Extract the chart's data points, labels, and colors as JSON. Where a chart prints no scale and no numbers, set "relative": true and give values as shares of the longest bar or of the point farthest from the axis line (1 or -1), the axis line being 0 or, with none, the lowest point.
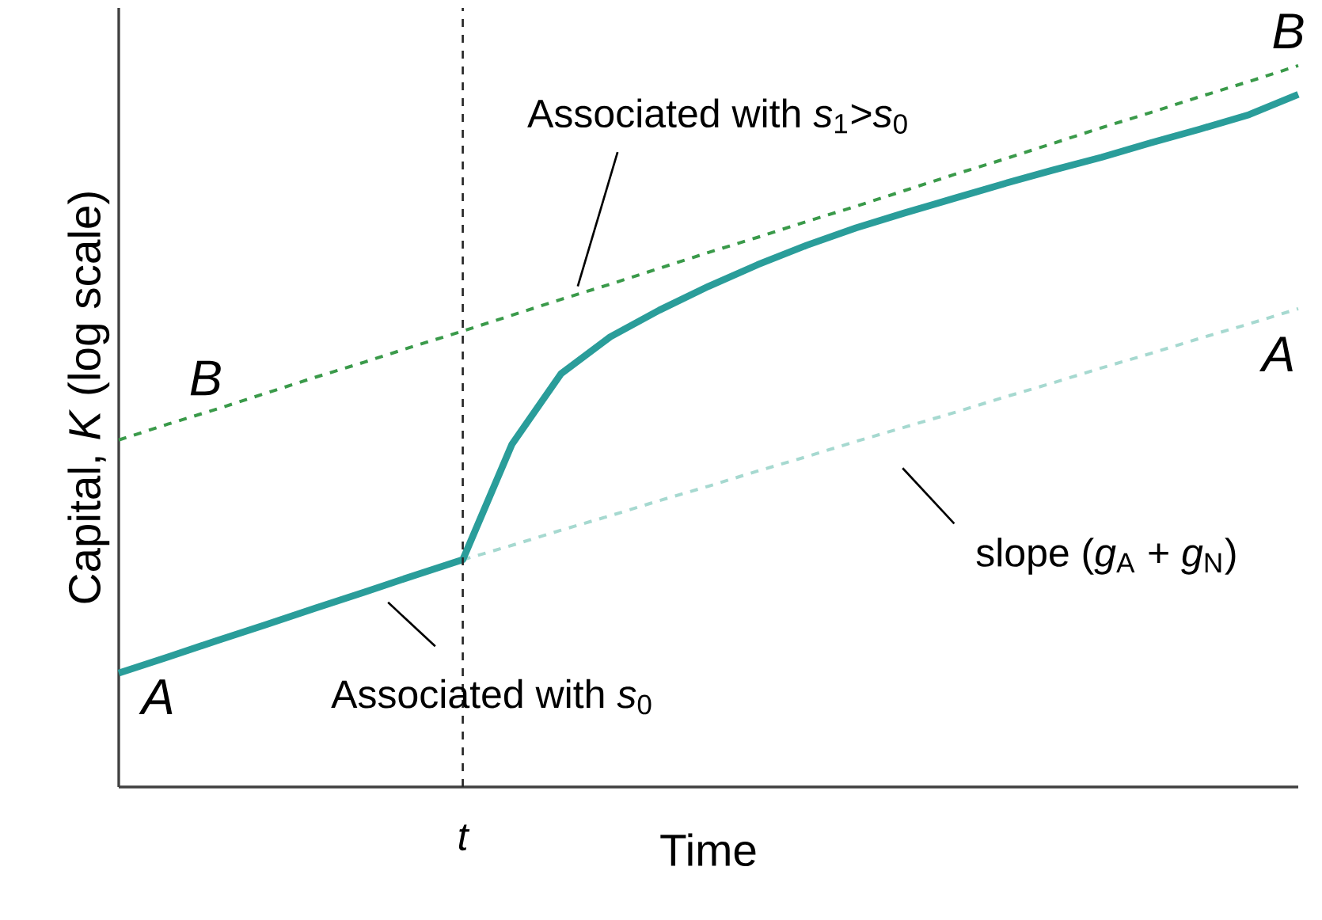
{
  "chart_data": {
    "type": "line",
    "relative": true,
    "xlabel": "Time",
    "ylabel": "Capital, *K* (log scale)",
    "categories": [
      null,
      null,
      null,
      null,
      null,
      null,
      null,
      null,
      null,
      null,
      null,
      null,
      null,
      null,
      null,
      null,
      null,
      null,
      null,
      null,
      null,
      null,
      null,
      null,
      null
    ],
    "series": [
      {
        "color": "#3a9a4a",
        "line_style": "dashed",
        "values": [
          0.481,
          0.503,
          0.524,
          0.546,
          0.568,
          0.589,
          0.611,
          0.632,
          0.654,
          0.676,
          0.697,
          0.719,
          0.741,
          0.762,
          0.784,
          0.805,
          0.827,
          0.849,
          0.87,
          0.892,
          0.914,
          0.935,
          0.957,
          0.978,
          1.0
        ]
      },
      {
        "color": "#a6d9d0",
        "line_style": "dashed",
        "values": [
          null,
          null,
          null,
          null,
          null,
          null,
          null,
          0.315,
          0.335,
          0.356,
          0.376,
          0.397,
          0.417,
          0.438,
          0.458,
          0.479,
          0.499,
          0.519,
          0.54,
          0.56,
          0.581,
          0.601,
          0.622,
          0.642,
          0.663
        ]
      },
      {
        "color": "#2a9d9a",
        "line_style": "solid",
        "values": [
          0.158,
          0.18,
          0.203,
          0.225,
          0.248,
          0.27,
          0.293,
          0.315,
          0.475,
          0.573,
          0.624,
          0.661,
          0.694,
          0.724,
          0.751,
          0.775,
          0.796,
          0.816,
          0.836,
          0.855,
          0.873,
          0.893,
          0.912,
          0.932,
          0.96
        ]
      }
    ],
    "annotations": [
      "B",
      "B",
      "A",
      "A",
      "Associated with *s*$_{1}$>*s*$_{0}$",
      "slope (*g*$_{A}$ + *g*$_{N}$)",
      "Associated with *s*$_{0}$",
      "t"
    ]
  }
}
